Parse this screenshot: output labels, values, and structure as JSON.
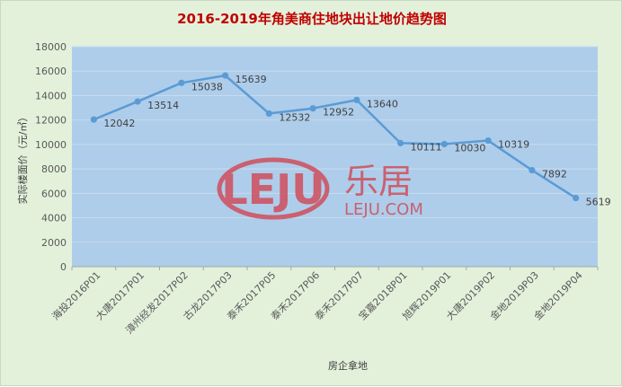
{
  "chart_data": {
    "type": "line",
    "title": "2016-2019年角美商住地块出让地价趋势图",
    "xlabel": "房企拿地",
    "ylabel": "实际楼面价（元/㎡）",
    "categories": [
      "海投2016P01",
      "大唐2017P01",
      "漳州经发2017P02",
      "古龙2017P03",
      "泰禾2017P05",
      "泰禾2017P06",
      "泰禾2017P07",
      "宝嘉2018P01",
      "旭辉2019P01",
      "大唐2019P02",
      "金地2019P03",
      "金地2019P04"
    ],
    "values": [
      12042,
      13514,
      15038,
      15639,
      12532,
      12952,
      13640,
      10111,
      10030,
      10319,
      7892,
      5619
    ],
    "ylim": [
      0,
      18000
    ],
    "yticks": [
      0,
      2000,
      4000,
      6000,
      8000,
      10000,
      12000,
      14000,
      16000,
      18000
    ],
    "grid": true,
    "line_color": "#5b9bd5",
    "plot_background": "#aecdea",
    "title_color": "#c00000"
  },
  "watermark": {
    "logo_text": "LEJU",
    "cn_text": "乐居",
    "url_text": "LEJU.COM",
    "color": "#d2424f"
  }
}
